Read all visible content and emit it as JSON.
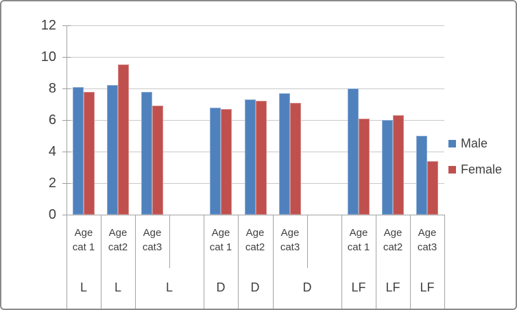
{
  "chart_data": {
    "type": "bar",
    "title": "",
    "y_axis": {
      "min": 0,
      "max": 12,
      "step": 2,
      "tick_labels": [
        "12",
        "10",
        "8",
        "6",
        "4",
        "2",
        "0"
      ]
    },
    "x_axis": {
      "groups": [
        {
          "label": "L",
          "categories": [
            "Age cat 1",
            "Age cat2",
            "Age cat3"
          ]
        },
        {
          "label": "D",
          "categories": [
            "Age cat 1",
            "Age cat2",
            "Age cat3"
          ]
        },
        {
          "label": "LF",
          "categories": [
            "Age cat 1",
            "Age cat2",
            "Age cat3"
          ]
        }
      ]
    },
    "series": [
      {
        "name": "Male",
        "color": "#4F81BD",
        "values": [
          8.1,
          8.2,
          7.8,
          6.8,
          7.3,
          7.7,
          8.0,
          6.0,
          5.0
        ]
      },
      {
        "name": "Female",
        "color": "#C0504D",
        "values": [
          7.8,
          9.5,
          6.9,
          6.7,
          7.2,
          7.1,
          6.1,
          6.3,
          3.4
        ]
      }
    ],
    "legend": {
      "position": "right",
      "entries": [
        "Male",
        "Female"
      ]
    },
    "grid": true,
    "colors": {
      "gridline": "#C8C8C8",
      "axis": "#A3A3A3",
      "tick": "#9A9A9A",
      "text": "#3F3F3F",
      "frame": "#8A8A8A",
      "background": "#FFFFFF"
    }
  }
}
